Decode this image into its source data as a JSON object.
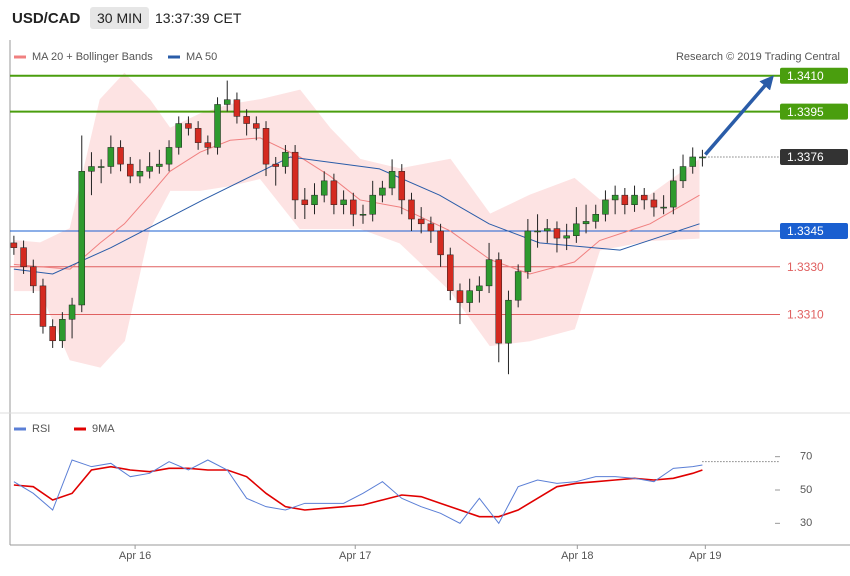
{
  "header": {
    "pair": "USD/CAD",
    "timeframe": "30 MIN",
    "time": "13:37:39 CET"
  },
  "chart_data": {
    "type": "candlestick",
    "credit": "Research © 2019 Trading Central",
    "up_color": "#2e9a2e",
    "down_color": "#d42a20",
    "xlim": [
      -0.4,
      79
    ],
    "ylim": [
      1.327,
      1.3425
    ],
    "xticks": [
      {
        "value": 12.5,
        "label": "Apr 16"
      },
      {
        "value": 35.2,
        "label": "Apr 17"
      },
      {
        "value": 58.1,
        "label": "Apr 18"
      },
      {
        "value": 71.3,
        "label": "Apr 19"
      }
    ],
    "candles": [
      [
        1.334,
        1.3343,
        1.3335,
        1.3338
      ],
      [
        1.3338,
        1.3341,
        1.3327,
        1.333
      ],
      [
        1.333,
        1.3333,
        1.3319,
        1.3322
      ],
      [
        1.3322,
        1.3325,
        1.3302,
        1.3305
      ],
      [
        1.3305,
        1.3308,
        1.3296,
        1.3299
      ],
      [
        1.3299,
        1.3311,
        1.3296,
        1.3308
      ],
      [
        1.3308,
        1.3317,
        1.33,
        1.3314
      ],
      [
        1.3314,
        1.3385,
        1.3311,
        1.337
      ],
      [
        1.337,
        1.3378,
        1.336,
        1.3372
      ],
      [
        1.3372,
        1.3375,
        1.3365,
        1.3372
      ],
      [
        1.3372,
        1.3385,
        1.3369,
        1.338
      ],
      [
        1.338,
        1.3383,
        1.337,
        1.3373
      ],
      [
        1.3373,
        1.3376,
        1.3365,
        1.3368
      ],
      [
        1.3368,
        1.3375,
        1.3365,
        1.337
      ],
      [
        1.337,
        1.3378,
        1.3367,
        1.3372
      ],
      [
        1.3372,
        1.3379,
        1.3369,
        1.3373
      ],
      [
        1.3373,
        1.3383,
        1.337,
        1.338
      ],
      [
        1.338,
        1.3393,
        1.3377,
        1.339
      ],
      [
        1.339,
        1.3393,
        1.3385,
        1.3388
      ],
      [
        1.3388,
        1.3391,
        1.3379,
        1.3382
      ],
      [
        1.3382,
        1.3385,
        1.3377,
        1.338
      ],
      [
        1.338,
        1.3401,
        1.3377,
        1.3398
      ],
      [
        1.3398,
        1.3408,
        1.3395,
        1.34
      ],
      [
        1.34,
        1.3403,
        1.339,
        1.3393
      ],
      [
        1.3393,
        1.3396,
        1.3385,
        1.339
      ],
      [
        1.339,
        1.3393,
        1.3383,
        1.3388
      ],
      [
        1.3388,
        1.3391,
        1.3368,
        1.3373
      ],
      [
        1.3373,
        1.3376,
        1.3364,
        1.3372
      ],
      [
        1.3372,
        1.3381,
        1.3369,
        1.3378
      ],
      [
        1.3378,
        1.3381,
        1.335,
        1.3358
      ],
      [
        1.3358,
        1.3363,
        1.335,
        1.3356
      ],
      [
        1.3356,
        1.3365,
        1.3352,
        1.336
      ],
      [
        1.336,
        1.337,
        1.3357,
        1.3366
      ],
      [
        1.3366,
        1.3369,
        1.3352,
        1.3356
      ],
      [
        1.3356,
        1.3362,
        1.3352,
        1.3358
      ],
      [
        1.3358,
        1.3361,
        1.3347,
        1.3352
      ],
      [
        1.3352,
        1.3356,
        1.3348,
        1.3352
      ],
      [
        1.3352,
        1.3366,
        1.3349,
        1.336
      ],
      [
        1.336,
        1.3366,
        1.3357,
        1.3363
      ],
      [
        1.3363,
        1.3375,
        1.336,
        1.337
      ],
      [
        1.337,
        1.3373,
        1.3352,
        1.3358
      ],
      [
        1.3358,
        1.3361,
        1.3345,
        1.335
      ],
      [
        1.335,
        1.3355,
        1.3344,
        1.3348
      ],
      [
        1.3348,
        1.3351,
        1.334,
        1.3345
      ],
      [
        1.3345,
        1.3348,
        1.333,
        1.3335
      ],
      [
        1.3335,
        1.3338,
        1.3316,
        1.332
      ],
      [
        1.332,
        1.3323,
        1.3306,
        1.3315
      ],
      [
        1.3315,
        1.3325,
        1.3311,
        1.332
      ],
      [
        1.332,
        1.3326,
        1.3315,
        1.3322
      ],
      [
        1.3322,
        1.334,
        1.3319,
        1.3333
      ],
      [
        1.3333,
        1.3336,
        1.329,
        1.3298
      ],
      [
        1.3298,
        1.332,
        1.3285,
        1.3316
      ],
      [
        1.3316,
        1.3331,
        1.3313,
        1.3328
      ],
      [
        1.3328,
        1.335,
        1.3325,
        1.3345
      ],
      [
        1.3345,
        1.3352,
        1.3338,
        1.3345
      ],
      [
        1.3345,
        1.335,
        1.334,
        1.3346
      ],
      [
        1.3346,
        1.3349,
        1.3336,
        1.3342
      ],
      [
        1.3342,
        1.3348,
        1.3337,
        1.3343
      ],
      [
        1.3343,
        1.3355,
        1.334,
        1.3348
      ],
      [
        1.3348,
        1.3356,
        1.3344,
        1.3349
      ],
      [
        1.3349,
        1.3356,
        1.3346,
        1.3352
      ],
      [
        1.3352,
        1.3362,
        1.3349,
        1.3358
      ],
      [
        1.3358,
        1.3364,
        1.3352,
        1.336
      ],
      [
        1.336,
        1.3363,
        1.3352,
        1.3356
      ],
      [
        1.3356,
        1.3364,
        1.3353,
        1.336
      ],
      [
        1.336,
        1.3363,
        1.3354,
        1.3358
      ],
      [
        1.3358,
        1.3361,
        1.3351,
        1.3355
      ],
      [
        1.3355,
        1.336,
        1.3352,
        1.3355
      ],
      [
        1.3355,
        1.3371,
        1.3352,
        1.3366
      ],
      [
        1.3366,
        1.3377,
        1.3363,
        1.3372
      ],
      [
        1.3372,
        1.338,
        1.3369,
        1.3376
      ],
      [
        1.3376,
        1.3379,
        1.3372,
        1.3376
      ]
    ],
    "bollinger": {
      "name": "MA 20 + Bollinger Bands",
      "color": "#f08080",
      "fill": "#fde3e3",
      "x": [
        0,
        2.7,
        5.8,
        8.9,
        11.4,
        14,
        16.1,
        19.2,
        22.3,
        25.4,
        29.5,
        32.6,
        35.7,
        39.8,
        45,
        49.1,
        53.2,
        57.8,
        60.4,
        65.6,
        70.7
      ],
      "mid": [
        1.3331,
        1.333,
        1.3329,
        1.334,
        1.3348,
        1.336,
        1.337,
        1.3378,
        1.3383,
        1.3384,
        1.3376,
        1.3368,
        1.3358,
        1.3355,
        1.3345,
        1.3333,
        1.3327,
        1.3332,
        1.3341,
        1.3348,
        1.336
      ],
      "upper": [
        1.3341,
        1.334,
        1.3346,
        1.34,
        1.3411,
        1.34,
        1.3388,
        1.3394,
        1.3398,
        1.34,
        1.3404,
        1.3388,
        1.3375,
        1.3371,
        1.3375,
        1.3352,
        1.336,
        1.3367,
        1.3358,
        1.336,
        1.3375
      ],
      "lower": [
        1.332,
        1.332,
        1.3291,
        1.3288,
        1.3299,
        1.3346,
        1.3362,
        1.3362,
        1.3364,
        1.3367,
        1.3346,
        1.3346,
        1.3346,
        1.334,
        1.332,
        1.3297,
        1.3299,
        1.3304,
        1.3337,
        1.3341,
        1.3342
      ]
    },
    "ma50": {
      "name": "MA 50",
      "color": "#2a5ca8",
      "x": [
        0,
        4,
        10,
        19.5,
        28.5,
        37.7,
        43.9,
        49,
        54.2,
        62.5,
        70.7
      ],
      "values": [
        1.3329,
        1.3327,
        1.3338,
        1.3358,
        1.3376,
        1.3371,
        1.336,
        1.3348,
        1.334,
        1.3337,
        1.3348
      ]
    },
    "levels": [
      {
        "value": 1.341,
        "label": "1.3410",
        "color": "#4a9e0e",
        "style": "badge"
      },
      {
        "value": 1.3395,
        "label": "1.3395",
        "color": "#4a9e0e",
        "style": "badge"
      },
      {
        "value": 1.3376,
        "label": "1.3376",
        "color": "#333333",
        "style": "current"
      },
      {
        "value": 1.3345,
        "label": "1.3345",
        "color": "#1a5fd0",
        "style": "badge"
      },
      {
        "value": 1.333,
        "label": "1.3330",
        "color": "#e06060",
        "style": "text"
      },
      {
        "value": 1.331,
        "label": "1.3310",
        "color": "#e06060",
        "style": "text"
      }
    ],
    "arrow": {
      "color": "#2a5ca8",
      "x": [
        71.3,
        77.9
      ],
      "y": [
        1.3377,
        1.3408
      ]
    },
    "rsi": {
      "ylim": [
        17,
        80
      ],
      "yticks": [
        30,
        50,
        70
      ],
      "level_line": 67,
      "x": [
        0,
        2,
        4,
        6,
        8,
        10,
        12,
        14,
        16,
        18,
        20,
        22,
        24,
        26,
        28,
        30,
        32,
        34,
        36,
        38,
        40,
        42,
        44,
        46,
        48,
        50,
        52,
        54,
        56,
        58,
        60,
        62,
        64,
        66,
        68,
        70,
        71
      ],
      "series": [
        {
          "name": "RSI",
          "color": "#5b7fd6",
          "values": [
            55,
            48,
            38,
            68,
            64,
            66,
            58,
            60,
            67,
            62,
            68,
            62,
            45,
            40,
            38,
            42,
            42,
            42,
            48,
            55,
            45,
            40,
            36,
            30,
            45,
            30,
            52,
            56,
            54,
            55,
            58,
            58,
            57,
            55,
            63,
            64,
            65
          ]
        },
        {
          "name": "9MA",
          "color": "#e00000",
          "values": [
            53,
            52,
            44,
            48,
            62,
            64,
            62,
            61,
            63,
            63,
            62,
            62,
            58,
            48,
            40,
            38,
            39,
            40,
            41,
            44,
            47,
            46,
            42,
            38,
            34,
            34,
            38,
            45,
            52,
            54,
            55,
            56,
            57,
            56,
            57,
            60,
            62
          ]
        }
      ]
    }
  }
}
